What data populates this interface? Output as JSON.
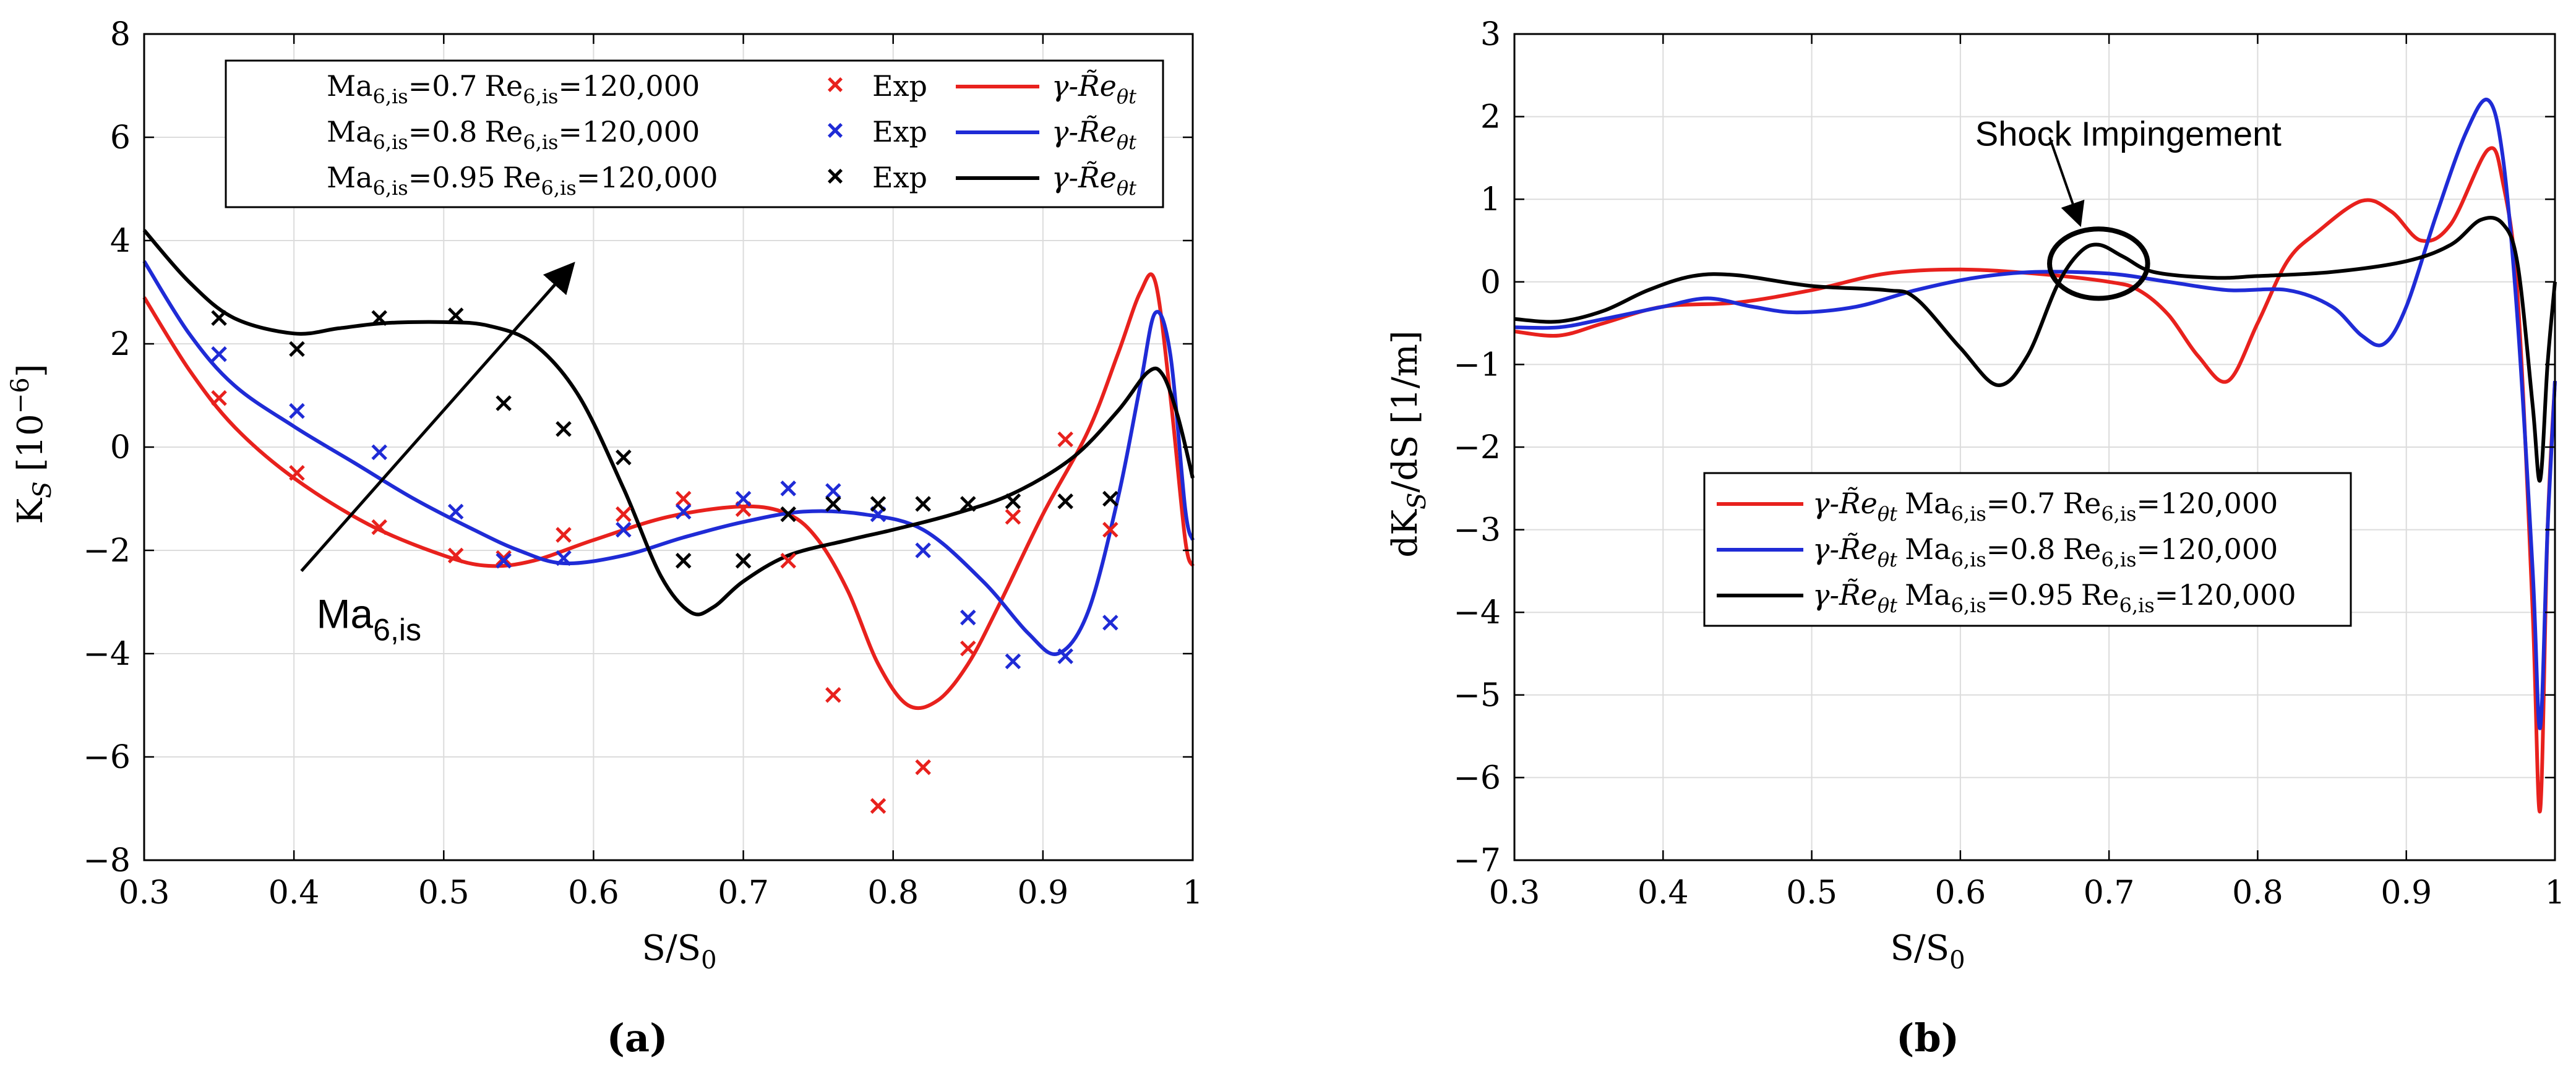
{
  "chart_data": [
    {
      "type": "line",
      "panel_label": "(a)",
      "xlabel": "S/S",
      "xlabel_sub": "0",
      "ylabel": "K",
      "ylabel_sub": "S",
      "ylabel_unit": "[10",
      "ylabel_exp": "−6",
      "ylabel_close": "]",
      "xlim": [
        0.3,
        1.0
      ],
      "ylim": [
        -8,
        8
      ],
      "xticks": [
        0.3,
        0.4,
        0.5,
        0.6,
        0.7,
        0.8,
        0.9,
        1.0
      ],
      "xtick_labels": [
        "0.3",
        "0.4",
        "0.5",
        "0.6",
        "0.7",
        "0.8",
        "0.9",
        "1"
      ],
      "yticks": [
        -8,
        -6,
        -4,
        -2,
        0,
        2,
        4,
        6,
        8
      ],
      "ytick_labels": [
        "−8",
        "−6",
        "−4",
        "−2",
        "0",
        "2",
        "4",
        "6",
        "8"
      ],
      "grid": true,
      "annotation": {
        "text": "Ma",
        "sub": "6,is",
        "arrow_from": [
          0.405,
          -2.4
        ],
        "arrow_to": [
          0.585,
          3.5
        ],
        "label_at": [
          0.415,
          -3.5
        ]
      },
      "legend": {
        "placement": "top",
        "rows": [
          {
            "cond_ma": "Ma",
            "cond_ma_sub": "6,is",
            "cond_ma_val": "=0.7",
            "cond_re": "Re",
            "cond_re_sub": "6,is",
            "cond_re_val": "=120,000",
            "marker_label": "Exp",
            "line_label": "γ-R̃e",
            "line_label_sub": "θt",
            "color": "#e8211d"
          },
          {
            "cond_ma": "Ma",
            "cond_ma_sub": "6,is",
            "cond_ma_val": "=0.8",
            "cond_re": "Re",
            "cond_re_sub": "6,is",
            "cond_re_val": "=120,000",
            "marker_label": "Exp",
            "line_label": "γ-R̃e",
            "line_label_sub": "θt",
            "color": "#1f2bd6"
          },
          {
            "cond_ma": "Ma",
            "cond_ma_sub": "6,is",
            "cond_ma_val": "=0.95",
            "cond_re": "Re",
            "cond_re_sub": "6,is",
            "cond_re_val": "=120,000",
            "marker_label": "Exp",
            "line_label": "γ-R̃e",
            "line_label_sub": "θt",
            "color": "#000000"
          }
        ]
      },
      "series": [
        {
          "name": "Ma0.7 γ-Reθt",
          "kind": "line",
          "color": "#e8211d",
          "x": [
            0.3,
            0.33,
            0.36,
            0.4,
            0.45,
            0.5,
            0.53,
            0.56,
            0.6,
            0.65,
            0.7,
            0.73,
            0.75,
            0.77,
            0.79,
            0.81,
            0.83,
            0.85,
            0.87,
            0.9,
            0.93,
            0.95,
            0.965,
            0.975,
            0.985,
            0.995,
            1.0
          ],
          "y": [
            2.9,
            1.5,
            0.4,
            -0.6,
            -1.5,
            -2.1,
            -2.3,
            -2.2,
            -1.8,
            -1.35,
            -1.15,
            -1.3,
            -1.8,
            -2.8,
            -4.2,
            -5.0,
            -4.9,
            -4.2,
            -3.1,
            -1.3,
            0.3,
            1.8,
            3.0,
            3.2,
            1.0,
            -1.8,
            -2.3
          ]
        },
        {
          "name": "Ma0.8 γ-Reθt",
          "kind": "line",
          "color": "#1f2bd6",
          "x": [
            0.3,
            0.33,
            0.36,
            0.4,
            0.44,
            0.48,
            0.52,
            0.55,
            0.58,
            0.62,
            0.66,
            0.7,
            0.74,
            0.78,
            0.82,
            0.86,
            0.89,
            0.91,
            0.93,
            0.95,
            0.965,
            0.975,
            0.985,
            0.995,
            1.0
          ],
          "y": [
            3.6,
            2.2,
            1.2,
            0.4,
            -0.3,
            -1.0,
            -1.6,
            -2.0,
            -2.25,
            -2.1,
            -1.75,
            -1.45,
            -1.25,
            -1.3,
            -1.6,
            -2.6,
            -3.6,
            -4.0,
            -3.2,
            -1.0,
            1.2,
            2.6,
            1.8,
            -1.2,
            -1.8
          ]
        },
        {
          "name": "Ma0.95 γ-Reθt",
          "kind": "line",
          "color": "#000000",
          "x": [
            0.3,
            0.33,
            0.36,
            0.4,
            0.43,
            0.46,
            0.5,
            0.53,
            0.56,
            0.59,
            0.62,
            0.645,
            0.665,
            0.68,
            0.7,
            0.73,
            0.77,
            0.8,
            0.84,
            0.88,
            0.92,
            0.95,
            0.97,
            0.98,
            0.99,
            1.0
          ],
          "y": [
            4.2,
            3.2,
            2.5,
            2.2,
            2.3,
            2.4,
            2.42,
            2.35,
            2.0,
            1.0,
            -0.8,
            -2.5,
            -3.2,
            -3.1,
            -2.6,
            -2.1,
            -1.8,
            -1.6,
            -1.3,
            -0.9,
            -0.2,
            0.7,
            1.45,
            1.4,
            0.6,
            -0.6
          ]
        },
        {
          "name": "Ma0.7 Exp",
          "kind": "marker",
          "color": "#e8211d",
          "x": [
            0.35,
            0.402,
            0.457,
            0.508,
            0.54,
            0.58,
            0.62,
            0.66,
            0.7,
            0.73,
            0.76,
            0.79,
            0.82,
            0.85,
            0.88,
            0.915,
            0.945
          ],
          "y": [
            0.95,
            -0.5,
            -1.55,
            -2.1,
            -2.15,
            -1.7,
            -1.3,
            -1.0,
            -1.2,
            -2.2,
            -4.8,
            -6.95,
            -6.2,
            -3.9,
            -1.35,
            0.15,
            -1.6
          ]
        },
        {
          "name": "Ma0.8 Exp",
          "kind": "marker",
          "color": "#1f2bd6",
          "x": [
            0.35,
            0.402,
            0.457,
            0.508,
            0.54,
            0.58,
            0.62,
            0.66,
            0.7,
            0.73,
            0.76,
            0.79,
            0.82,
            0.85,
            0.88,
            0.915,
            0.945
          ],
          "y": [
            1.8,
            0.7,
            -0.1,
            -1.25,
            -2.2,
            -2.15,
            -1.6,
            -1.25,
            -1.0,
            -0.8,
            -0.85,
            -1.3,
            -2.0,
            -3.3,
            -4.15,
            -4.05,
            -3.4
          ]
        },
        {
          "name": "Ma0.95 Exp",
          "kind": "marker",
          "color": "#000000",
          "x": [
            0.35,
            0.402,
            0.457,
            0.508,
            0.54,
            0.58,
            0.62,
            0.66,
            0.7,
            0.73,
            0.76,
            0.79,
            0.82,
            0.85,
            0.88,
            0.915,
            0.945
          ],
          "y": [
            2.5,
            1.9,
            2.5,
            2.55,
            0.85,
            0.35,
            -0.2,
            -2.2,
            -2.2,
            -1.3,
            -1.1,
            -1.1,
            -1.1,
            -1.1,
            -1.05,
            -1.05,
            -1.0
          ]
        }
      ]
    },
    {
      "type": "line",
      "panel_label": "(b)",
      "xlabel": "S/S",
      "xlabel_sub": "0",
      "ylabel": "dK",
      "ylabel_sub": "S",
      "ylabel_unit": "/dS [1/m]",
      "xlim": [
        0.3,
        1.0
      ],
      "ylim": [
        -7,
        3
      ],
      "xticks": [
        0.3,
        0.4,
        0.5,
        0.6,
        0.7,
        0.8,
        0.9,
        1.0
      ],
      "xtick_labels": [
        "0.3",
        "0.4",
        "0.5",
        "0.6",
        "0.7",
        "0.8",
        "0.9",
        "1"
      ],
      "yticks": [
        -7,
        -6,
        -5,
        -4,
        -3,
        -2,
        -1,
        0,
        1,
        2,
        3
      ],
      "ytick_labels": [
        "−7",
        "−6",
        "−5",
        "−4",
        "−3",
        "−2",
        "−1",
        "0",
        "1",
        "2",
        "3"
      ],
      "grid": true,
      "annotation": {
        "text": "Shock Impingement",
        "arrow_from": [
          0.66,
          1.75
        ],
        "arrow_to": [
          0.68,
          0.72
        ],
        "label_at": [
          0.61,
          1.65
        ],
        "circle_center": [
          0.693,
          0.22
        ],
        "circle_rx": 0.033,
        "circle_ry": 0.42
      },
      "legend": {
        "placement": "lower-center",
        "rows": [
          {
            "line_label": "γ-R̃e",
            "line_label_sub": "θt",
            "cond_ma": "Ma",
            "cond_ma_sub": "6,is",
            "cond_ma_val": "=0.7",
            "cond_re": "Re",
            "cond_re_sub": "6,is",
            "cond_re_val": "=120,000",
            "color": "#e8211d"
          },
          {
            "line_label": "γ-R̃e",
            "line_label_sub": "θt",
            "cond_ma": "Ma",
            "cond_ma_sub": "6,is",
            "cond_ma_val": "=0.8",
            "cond_re": "Re",
            "cond_re_sub": "6,is",
            "cond_re_val": "=120,000",
            "color": "#1f2bd6"
          },
          {
            "line_label": "γ-R̃e",
            "line_label_sub": "θt",
            "cond_ma": "Ma",
            "cond_ma_sub": "6,is",
            "cond_ma_val": "=0.95",
            "cond_re": "Re",
            "cond_re_sub": "6,is",
            "cond_re_val": "=120,000",
            "color": "#000000"
          }
        ]
      },
      "series": [
        {
          "name": "Ma0.7 γ-Reθt",
          "kind": "line",
          "color": "#e8211d",
          "x": [
            0.3,
            0.33,
            0.36,
            0.4,
            0.45,
            0.5,
            0.55,
            0.6,
            0.65,
            0.7,
            0.72,
            0.74,
            0.76,
            0.78,
            0.8,
            0.82,
            0.84,
            0.87,
            0.89,
            0.91,
            0.93,
            0.955,
            0.965,
            0.975,
            0.985,
            0.99,
            0.995,
            1.0
          ],
          "y": [
            -0.6,
            -0.65,
            -0.5,
            -0.3,
            -0.25,
            -0.1,
            0.1,
            0.15,
            0.1,
            0.0,
            -0.1,
            -0.4,
            -0.9,
            -1.2,
            -0.5,
            0.25,
            0.6,
            0.98,
            0.85,
            0.5,
            0.7,
            1.6,
            1.2,
            -0.2,
            -4.0,
            -6.4,
            -3.0,
            -1.2
          ]
        },
        {
          "name": "Ma0.8 γ-Reθt",
          "kind": "line",
          "color": "#1f2bd6",
          "x": [
            0.3,
            0.33,
            0.36,
            0.4,
            0.43,
            0.46,
            0.49,
            0.53,
            0.57,
            0.61,
            0.65,
            0.7,
            0.74,
            0.78,
            0.82,
            0.85,
            0.87,
            0.885,
            0.9,
            0.92,
            0.94,
            0.955,
            0.965,
            0.975,
            0.985,
            0.99,
            0.995,
            1.0
          ],
          "y": [
            -0.55,
            -0.55,
            -0.45,
            -0.3,
            -0.2,
            -0.3,
            -0.37,
            -0.3,
            -0.1,
            0.05,
            0.12,
            0.1,
            0.0,
            -0.1,
            -0.1,
            -0.3,
            -0.65,
            -0.75,
            -0.3,
            0.8,
            1.8,
            2.2,
            1.5,
            -0.5,
            -3.5,
            -5.4,
            -3.0,
            -1.2
          ]
        },
        {
          "name": "Ma0.95 γ-Reθt",
          "kind": "line",
          "color": "#000000",
          "x": [
            0.3,
            0.33,
            0.36,
            0.39,
            0.42,
            0.45,
            0.5,
            0.55,
            0.57,
            0.6,
            0.625,
            0.645,
            0.665,
            0.68,
            0.693,
            0.71,
            0.73,
            0.77,
            0.8,
            0.85,
            0.9,
            0.93,
            0.95,
            0.965,
            0.975,
            0.985,
            0.99,
            0.995,
            1.0
          ],
          "y": [
            -0.45,
            -0.48,
            -0.35,
            -0.1,
            0.07,
            0.08,
            -0.05,
            -0.1,
            -0.2,
            -0.8,
            -1.25,
            -0.9,
            -0.05,
            0.35,
            0.45,
            0.3,
            0.12,
            0.05,
            0.07,
            0.12,
            0.25,
            0.45,
            0.75,
            0.7,
            0.2,
            -1.5,
            -2.4,
            -1.0,
            0.0
          ]
        }
      ]
    }
  ]
}
